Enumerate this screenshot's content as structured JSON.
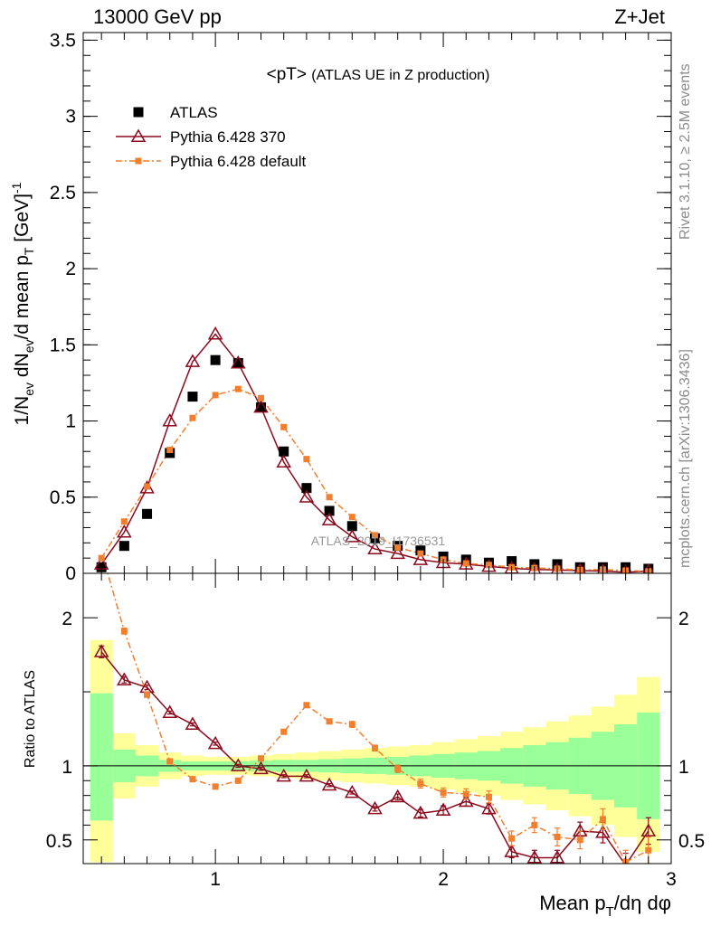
{
  "header": {
    "left": "13000 GeV pp",
    "right": "Z+Jet"
  },
  "side_labels": {
    "rivet": "Rivet 3.1.10, ≥ 2.5M events",
    "mcplots": "mcplots.cern.ch [arXiv:1306.3436]"
  },
  "watermark": "ATLAS_2019_I1736531",
  "chart_data": [
    {
      "type": "scatter",
      "panel": "main",
      "title": "<pT>",
      "subtitle": "(ATLAS UE in Z production)",
      "ylabel_parts": [
        "1/N",
        "ev",
        " dN",
        "ev",
        "/d mean p",
        "T",
        " [GeV]",
        "-1"
      ],
      "xlim": [
        0.42,
        3.0
      ],
      "ylim": [
        0,
        3.55
      ],
      "yticks": [
        0,
        0.5,
        1,
        1.5,
        2,
        2.5,
        3,
        3.5
      ],
      "ytick_labels": [
        "0",
        "0.5",
        "1",
        "1.5",
        "2",
        "2.5",
        "3",
        "3.5"
      ],
      "legend_position": "top-left",
      "x": [
        0.5,
        0.6,
        0.7,
        0.8,
        0.9,
        1.0,
        1.1,
        1.2,
        1.3,
        1.4,
        1.5,
        1.6,
        1.7,
        1.8,
        1.9,
        2.0,
        2.1,
        2.2,
        2.3,
        2.4,
        2.5,
        2.6,
        2.7,
        2.8,
        2.9
      ],
      "series": [
        {
          "name": "ATLAS",
          "color": "#000000",
          "marker": "filled-square",
          "values": [
            0.04,
            0.18,
            0.39,
            0.79,
            1.16,
            1.4,
            1.38,
            1.09,
            0.8,
            0.56,
            0.41,
            0.31,
            0.23,
            0.18,
            0.15,
            0.11,
            0.09,
            0.07,
            0.08,
            0.06,
            0.06,
            0.04,
            0.04,
            0.04,
            0.03
          ]
        },
        {
          "name": "Pythia 6.428 370",
          "color": "#8b0a1e",
          "marker": "open-triangle",
          "line": "solid",
          "values": [
            0.06,
            0.27,
            0.56,
            1.0,
            1.39,
            1.57,
            1.38,
            1.09,
            0.73,
            0.5,
            0.35,
            0.24,
            0.16,
            0.13,
            0.09,
            0.07,
            0.06,
            0.045,
            0.033,
            0.025,
            0.022,
            0.018,
            0.015,
            0.007,
            0.015
          ]
        },
        {
          "name": "Pythia 6.428 default",
          "color": "#f07f2f",
          "marker": "filled-small-square",
          "line": "dash-dot",
          "values": [
            0.1,
            0.34,
            0.57,
            0.81,
            1.02,
            1.17,
            1.21,
            1.15,
            0.96,
            0.75,
            0.5,
            0.37,
            0.25,
            0.17,
            0.13,
            0.09,
            0.065,
            0.055,
            0.04,
            0.035,
            0.03,
            0.022,
            0.025,
            0.018,
            0.013
          ]
        }
      ]
    },
    {
      "type": "line",
      "panel": "ratio",
      "ylabel": "Ratio to ATLAS",
      "xlabel_parts": [
        "Mean p",
        "T",
        "/dη dφ"
      ],
      "xlim": [
        0.42,
        3.0
      ],
      "ylim": [
        0.34,
        2.3
      ],
      "xticks": [
        1,
        2,
        3
      ],
      "xtick_labels": [
        "1",
        "2",
        "3"
      ],
      "yticks": [
        0.5,
        1,
        2
      ],
      "ytick_labels": [
        "0.5",
        "1",
        "2"
      ],
      "reference_line": 1,
      "band_edges": [
        0.45,
        0.55,
        0.65,
        0.75,
        0.85,
        0.95,
        1.05,
        1.15,
        1.25,
        1.35,
        1.45,
        1.55,
        1.65,
        1.75,
        1.85,
        1.95,
        2.05,
        2.15,
        2.25,
        2.35,
        2.45,
        2.55,
        2.65,
        2.75,
        2.85,
        2.95
      ],
      "band_stat_color": "#99ff99",
      "band_total_color": "#ffff99",
      "band_stat": [
        [
          0.63,
          1.49
        ],
        [
          0.89,
          1.11
        ],
        [
          0.93,
          1.07
        ],
        [
          0.96,
          1.04
        ],
        [
          0.97,
          1.03
        ],
        [
          0.97,
          1.03
        ],
        [
          0.97,
          1.03
        ],
        [
          0.965,
          1.035
        ],
        [
          0.96,
          1.04
        ],
        [
          0.96,
          1.04
        ],
        [
          0.955,
          1.045
        ],
        [
          0.95,
          1.05
        ],
        [
          0.945,
          1.055
        ],
        [
          0.94,
          1.06
        ],
        [
          0.93,
          1.07
        ],
        [
          0.92,
          1.08
        ],
        [
          0.91,
          1.09
        ],
        [
          0.9,
          1.1
        ],
        [
          0.88,
          1.12
        ],
        [
          0.86,
          1.14
        ],
        [
          0.84,
          1.16
        ],
        [
          0.81,
          1.19
        ],
        [
          0.77,
          1.23
        ],
        [
          0.72,
          1.28
        ],
        [
          0.64,
          1.36
        ]
      ],
      "band_total": [
        [
          0.35,
          1.85
        ],
        [
          0.78,
          1.22
        ],
        [
          0.86,
          1.14
        ],
        [
          0.91,
          1.09
        ],
        [
          0.93,
          1.07
        ],
        [
          0.94,
          1.06
        ],
        [
          0.94,
          1.06
        ],
        [
          0.93,
          1.07
        ],
        [
          0.92,
          1.08
        ],
        [
          0.91,
          1.09
        ],
        [
          0.9,
          1.1
        ],
        [
          0.89,
          1.11
        ],
        [
          0.88,
          1.12
        ],
        [
          0.87,
          1.13
        ],
        [
          0.86,
          1.14
        ],
        [
          0.84,
          1.16
        ],
        [
          0.82,
          1.18
        ],
        [
          0.8,
          1.2
        ],
        [
          0.77,
          1.23
        ],
        [
          0.74,
          1.26
        ],
        [
          0.7,
          1.3
        ],
        [
          0.66,
          1.34
        ],
        [
          0.6,
          1.4
        ],
        [
          0.52,
          1.48
        ],
        [
          0.42,
          1.6
        ]
      ],
      "x": [
        0.5,
        0.6,
        0.7,
        0.8,
        0.9,
        1.0,
        1.1,
        1.2,
        1.3,
        1.4,
        1.5,
        1.6,
        1.7,
        1.8,
        1.9,
        2.0,
        2.1,
        2.2,
        2.3,
        2.4,
        2.5,
        2.6,
        2.7,
        2.8,
        2.9
      ],
      "series": [
        {
          "name": "Pythia 6.428 370",
          "color": "#8b0a1e",
          "marker": "open-triangle",
          "line": "solid",
          "values": [
            1.77,
            1.58,
            1.53,
            1.36,
            1.28,
            1.15,
            1.0,
            0.98,
            0.93,
            0.93,
            0.87,
            0.82,
            0.71,
            0.79,
            0.68,
            0.7,
            0.76,
            0.71,
            0.42,
            0.38,
            0.38,
            0.56,
            0.55,
            0.33,
            0.56
          ],
          "errors": [
            0.04,
            0.02,
            0.015,
            0.01,
            0.01,
            0.01,
            0.01,
            0.01,
            0.01,
            0.01,
            0.01,
            0.01,
            0.015,
            0.02,
            0.025,
            0.03,
            0.03,
            0.035,
            0.04,
            0.05,
            0.05,
            0.06,
            0.07,
            0.08,
            0.09
          ]
        },
        {
          "name": "Pythia 6.428 default",
          "color": "#f07f2f",
          "marker": "filled-small-square",
          "line": "dash-dot",
          "values": [
            2.45,
            1.91,
            1.48,
            1.03,
            0.91,
            0.86,
            0.9,
            1.05,
            1.23,
            1.41,
            1.3,
            1.28,
            1.12,
            0.98,
            0.88,
            0.82,
            0.81,
            0.79,
            0.51,
            0.6,
            0.52,
            0.5,
            0.64,
            0.35,
            0.43
          ],
          "errors": [
            0.04,
            0.02,
            0.015,
            0.01,
            0.01,
            0.01,
            0.01,
            0.01,
            0.01,
            0.01,
            0.015,
            0.02,
            0.02,
            0.025,
            0.03,
            0.03,
            0.035,
            0.04,
            0.05,
            0.05,
            0.06,
            0.06,
            0.07,
            0.08,
            0.09
          ]
        }
      ]
    }
  ]
}
